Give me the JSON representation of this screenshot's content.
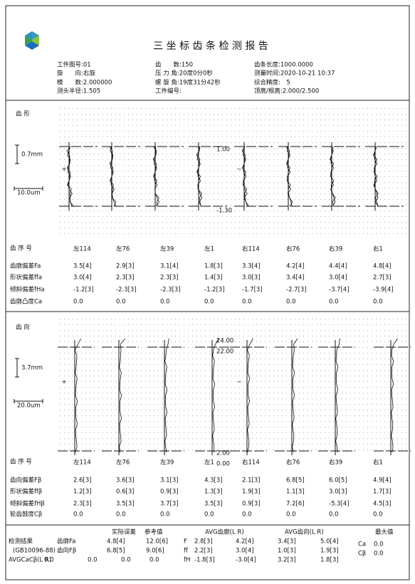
{
  "header": {
    "title": "三 坐 标 齿 条 检 测 报 告",
    "info": [
      [
        "工件图号:01",
        "齿　　数:150",
        "齿条长度:1000.0000"
      ],
      [
        "旋　　向:右旋",
        "压 力 角:20度0分0秒",
        "测量时间:2020-10-21 10:37"
      ],
      [
        "模　　数:2.000000",
        "螺 旋 角:19度31分42秒",
        "综合精度:　5"
      ],
      [
        "测头半径:1.505",
        "工件编号:",
        "顶高/根高:2.000/2.500"
      ]
    ]
  },
  "profile": {
    "label": "齿 形",
    "scale_mm": "0.7mm",
    "scale_um": "10.0um",
    "plus": "+",
    "minus": "−",
    "marks": [
      "1.00",
      "-1.30"
    ],
    "seq_label": "齿 序 号",
    "teeth": [
      "左114",
      "左76",
      "左39",
      "左1",
      "右114",
      "右76",
      "右39",
      "右1"
    ],
    "rows": [
      {
        "name": "齿廓偏差Fa",
        "values": [
          "3.5[4]",
          "2.9[3]",
          "3.1[4]",
          "1.8[3]",
          "3.3[4]",
          "4.2[4]",
          "4.4[4]",
          "4.8[4]"
        ]
      },
      {
        "name": "形状偏差ffa",
        "values": [
          "3.0[4]",
          "2.3[3]",
          "2.3[3]",
          "1.4[3]",
          "3.0[3]",
          "3.4[4]",
          "3.0[4]",
          "2.7[3]"
        ]
      },
      {
        "name": "倾斜偏差fHa",
        "values": [
          "-1.2[3]",
          "-2.3[3]",
          "-2.3[3]",
          "-1.2[3]",
          "-1.7[3]",
          "-2.7[3]",
          "-3.7[4]",
          "-3.9[4]"
        ]
      },
      {
        "name": "齿廓凸度Ca",
        "values": [
          "0.0",
          "0.0",
          "0.0",
          "0.0",
          "0.0",
          "0.0",
          "0.0",
          "0.0"
        ]
      }
    ]
  },
  "lead": {
    "label": "齿 向",
    "scale_mm": "3.7mm",
    "scale_um": "20.0um",
    "plus": "+",
    "minus": "−",
    "marks": [
      "24.00",
      "22.00",
      "2.00",
      "0.00"
    ],
    "seq_label": "齿 序 号",
    "teeth": [
      "左114",
      "左76",
      "左39",
      "左1",
      "右114",
      "右76",
      "右39",
      "右1"
    ],
    "rows": [
      {
        "name": "齿向偏差Fβ",
        "values": [
          "2.6[3]",
          "3.6[3]",
          "3.1[3]",
          "4.3[3]",
          "2.1[3]",
          "6.8[5]",
          "6.0[5]",
          "4.9[4]"
        ]
      },
      {
        "name": "形状偏差ffβ",
        "values": [
          "1.2[3]",
          "0.6[3]",
          "0.9[3]",
          "1.3[3]",
          "1.9[3]",
          "1.1[3]",
          "3.0[3]",
          "1.7[3]"
        ]
      },
      {
        "name": "倾斜偏差fHβ",
        "values": [
          "2.3[3]",
          "3.5[3]",
          "3.7[3]",
          "3.5[3]",
          "0.9[3]",
          "7.2[6]",
          "-5.3[4]",
          "4.5[3]"
        ]
      },
      {
        "name": "轮齿鼓度Cβ",
        "values": [
          "0.0",
          "0.0",
          "0.0",
          "0.0",
          "0.0",
          "0.0",
          "0.0",
          "0.0"
        ]
      }
    ]
  },
  "summary": {
    "headers": [
      "实际误差",
      "参考值",
      "AVG齿廓(L R)",
      "AVG齿向(L R)",
      "最大值"
    ],
    "rows": [
      [
        "检测结果",
        "齿廓Fa",
        "4.8[4]",
        "12.0[6]",
        "F",
        "2.8[3]",
        "4.2[4]",
        "3.4[3]",
        "5.0[4]",
        "Ca",
        "0.0"
      ],
      [
        "(GB10096-88)",
        "齿向Fβ",
        "6.8[5]",
        "9.0[6]",
        "ff",
        "2.2[3]",
        "3.0[4]",
        "1.0[3]",
        "1.9[3]",
        "Cβ",
        "0.0"
      ],
      [
        "AVGCaCβ(L R)",
        "0.0",
        "0.0",
        "0.0",
        "0.0",
        "fH",
        "-1.8[3]",
        "-3.0[4]",
        "3.2[3]",
        "1.8[3]"
      ]
    ]
  }
}
